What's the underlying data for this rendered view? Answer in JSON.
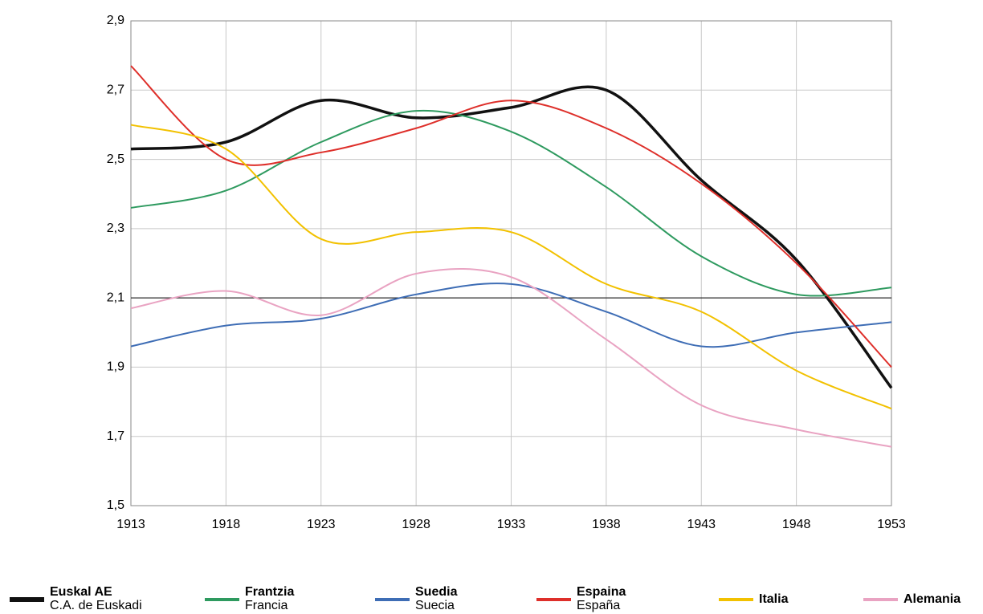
{
  "chart_data": {
    "type": "line",
    "x": [
      1913,
      1918,
      1923,
      1928,
      1933,
      1938,
      1943,
      1948,
      1953
    ],
    "xlim": [
      1913,
      1953
    ],
    "xticks": [
      1913,
      1918,
      1923,
      1928,
      1933,
      1938,
      1943,
      1948,
      1953
    ],
    "ylim": [
      1.5,
      2.9
    ],
    "yticks": [
      {
        "value": 1.5,
        "label": "1,5"
      },
      {
        "value": 1.7,
        "label": "1,7"
      },
      {
        "value": 1.9,
        "label": "1,9"
      },
      {
        "value": 2.1,
        "label": "2,1"
      },
      {
        "value": 2.3,
        "label": "2,3"
      },
      {
        "value": 2.5,
        "label": "2,5"
      },
      {
        "value": 2.7,
        "label": "2,7"
      },
      {
        "value": 2.9,
        "label": "2,9"
      }
    ],
    "x_axis_at": 2.1,
    "grid": true,
    "legend": "bottom",
    "series": [
      {
        "name": "Euskal AE",
        "name_es": "C.A. de Euskadi",
        "color": "#111111",
        "width": 3.5,
        "values": [
          2.53,
          2.55,
          2.67,
          2.62,
          2.65,
          2.7,
          2.44,
          2.21,
          1.84
        ]
      },
      {
        "name": "Frantzia",
        "name_es": "Francia",
        "color": "#2e9a5f",
        "width": 2,
        "values": [
          2.36,
          2.41,
          2.55,
          2.64,
          2.58,
          2.42,
          2.22,
          2.11,
          2.13
        ]
      },
      {
        "name": "Suedia",
        "name_es": "Suecia",
        "color": "#3e6db5",
        "width": 2,
        "values": [
          1.96,
          2.02,
          2.04,
          2.11,
          2.14,
          2.06,
          1.96,
          2.0,
          2.03
        ]
      },
      {
        "name": "Espaina",
        "name_es": "España",
        "color": "#de2f2a",
        "width": 2,
        "values": [
          2.77,
          2.5,
          2.52,
          2.59,
          2.67,
          2.59,
          2.43,
          2.2,
          1.9
        ]
      },
      {
        "name": "Italia",
        "color": "#f2c100",
        "width": 2,
        "values": [
          2.6,
          2.53,
          2.27,
          2.29,
          2.29,
          2.14,
          2.06,
          1.89,
          1.78
        ]
      },
      {
        "name": "Alemania",
        "color": "#e9a3c2",
        "width": 2,
        "values": [
          2.07,
          2.12,
          2.05,
          2.17,
          2.16,
          1.98,
          1.79,
          1.72,
          1.67
        ]
      }
    ]
  }
}
